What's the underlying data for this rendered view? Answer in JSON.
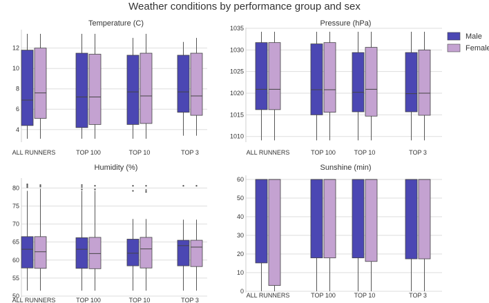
{
  "chart_data": {
    "type": "box",
    "title": "Weather conditions by performance group and sex",
    "categories": [
      "ALL RUNNERS",
      "TOP 100",
      "TOP 10",
      "TOP 3"
    ],
    "legend": {
      "position": "top-right",
      "entries": [
        {
          "name": "Male",
          "color": "#4b47b3"
        },
        {
          "name": "Female",
          "color": "#c4a2d1"
        }
      ]
    },
    "panels": [
      {
        "id": "temperature",
        "title": "Temperature (C)",
        "ylim": [
          2.9,
          13.4
        ],
        "yticks": [
          4,
          6,
          8,
          10,
          12
        ],
        "series": [
          {
            "name": "Male",
            "boxes": [
              {
                "whislo": 3.1,
                "q1": 4.4,
                "med": 6.9,
                "q3": 11.8,
                "whishi": 13.4
              },
              {
                "whislo": 3.1,
                "q1": 4.2,
                "med": 7.2,
                "q3": 11.5,
                "whishi": 13.4
              },
              {
                "whislo": 3.1,
                "q1": 4.5,
                "med": 7.7,
                "q3": 11.3,
                "whishi": 13.0
              },
              {
                "whislo": 3.4,
                "q1": 5.7,
                "med": 7.7,
                "q3": 11.3,
                "whishi": 12.6
              }
            ]
          },
          {
            "name": "Female",
            "boxes": [
              {
                "whislo": 3.1,
                "q1": 5.1,
                "med": 7.6,
                "q3": 12.0,
                "whishi": 13.4
              },
              {
                "whislo": 3.1,
                "q1": 4.5,
                "med": 7.2,
                "q3": 11.4,
                "whishi": 13.4
              },
              {
                "whislo": 3.1,
                "q1": 4.6,
                "med": 7.3,
                "q3": 11.5,
                "whishi": 13.4
              },
              {
                "whislo": 3.4,
                "q1": 5.4,
                "med": 7.3,
                "q3": 11.5,
                "whishi": 13.0
              }
            ]
          }
        ]
      },
      {
        "id": "pressure",
        "title": "Pressure (hPa)",
        "ylim": [
          1009,
          1034.2
        ],
        "yticks": [
          1010,
          1015,
          1020,
          1025,
          1030,
          1035
        ],
        "series": [
          {
            "name": "Male",
            "boxes": [
              {
                "whislo": 1009.1,
                "q1": 1016.2,
                "med": 1020.9,
                "q3": 1031.7,
                "whishi": 1034.2
              },
              {
                "whislo": 1009.1,
                "q1": 1015.0,
                "med": 1020.8,
                "q3": 1031.4,
                "whishi": 1034.2
              },
              {
                "whislo": 1009.1,
                "q1": 1015.7,
                "med": 1020.2,
                "q3": 1029.4,
                "whishi": 1034.2
              },
              {
                "whislo": 1009.1,
                "q1": 1015.7,
                "med": 1019.9,
                "q3": 1029.4,
                "whishi": 1034.2
              }
            ]
          },
          {
            "name": "Female",
            "boxes": [
              {
                "whislo": 1009.1,
                "q1": 1016.2,
                "med": 1020.9,
                "q3": 1031.7,
                "whishi": 1034.2
              },
              {
                "whislo": 1009.1,
                "q1": 1015.6,
                "med": 1020.8,
                "q3": 1031.7,
                "whishi": 1034.2
              },
              {
                "whislo": 1009.1,
                "q1": 1014.7,
                "med": 1020.9,
                "q3": 1030.6,
                "whishi": 1034.2
              },
              {
                "whislo": 1009.1,
                "q1": 1014.9,
                "med": 1020.0,
                "q3": 1030.0,
                "whishi": 1034.2
              }
            ]
          }
        ]
      },
      {
        "id": "humidity",
        "title": "Humidity (%)",
        "ylim": [
          50,
          81.6
        ],
        "yticks": [
          50,
          55,
          60,
          65,
          70,
          75,
          80
        ],
        "series": [
          {
            "name": "Male",
            "boxes": [
              {
                "whislo": 51.5,
                "q1": 57.8,
                "med": 63.0,
                "q3": 66.5,
                "whishi": 79.2,
                "fliers": [
                  80.2,
                  80.6,
                  81.0
                ]
              },
              {
                "whislo": 51.5,
                "q1": 57.7,
                "med": 63.0,
                "q3": 66.2,
                "whishi": 79.2,
                "fliers": [
                  79.6,
                  80.3,
                  80.8
                ]
              },
              {
                "whislo": 51.5,
                "q1": 58.4,
                "med": 61.9,
                "q3": 65.8,
                "whishi": 71.4,
                "fliers": [
                  79.2,
                  80.6
                ]
              },
              {
                "whislo": 51.5,
                "q1": 58.4,
                "med": 64.0,
                "q3": 65.5,
                "whishi": 71.2,
                "fliers": [
                  80.6
                ]
              }
            ]
          },
          {
            "name": "Female",
            "boxes": [
              {
                "whislo": 51.5,
                "q1": 57.7,
                "med": 62.3,
                "q3": 66.5,
                "whishi": 79.8,
                "fliers": [
                  80.4,
                  80.8
                ]
              },
              {
                "whislo": 51.5,
                "q1": 57.6,
                "med": 61.8,
                "q3": 66.3,
                "whishi": 79.2,
                "fliers": [
                  79.6,
                  80.6
                ]
              },
              {
                "whislo": 51.5,
                "q1": 57.8,
                "med": 63.1,
                "q3": 66.3,
                "whishi": 71.4,
                "fliers": [
                  78.9,
                  79.4,
                  80.6
                ]
              },
              {
                "whislo": 51.5,
                "q1": 58.2,
                "med": 63.6,
                "q3": 65.5,
                "whishi": 71.2,
                "fliers": [
                  80.6
                ]
              }
            ]
          }
        ]
      },
      {
        "id": "sunshine",
        "title": "Sunshine (min)",
        "ylim": [
          0,
          60
        ],
        "yticks": [
          0,
          10,
          20,
          30,
          40,
          50,
          60
        ],
        "series": [
          {
            "name": "Male",
            "boxes": [
              {
                "whislo": 0,
                "q1": 15.2,
                "med": 60,
                "q3": 60,
                "whishi": 60
              },
              {
                "whislo": 0,
                "q1": 17.9,
                "med": 60,
                "q3": 60,
                "whishi": 60
              },
              {
                "whislo": 0,
                "q1": 17.9,
                "med": 60,
                "q3": 60,
                "whishi": 60
              },
              {
                "whislo": 0,
                "q1": 17.4,
                "med": 60,
                "q3": 60,
                "whishi": 60
              }
            ]
          },
          {
            "name": "Female",
            "boxes": [
              {
                "whislo": 0,
                "q1": 3.1,
                "med": 60,
                "q3": 60,
                "whishi": 60
              },
              {
                "whislo": 0,
                "q1": 17.9,
                "med": 60,
                "q3": 60,
                "whishi": 60
              },
              {
                "whislo": 0,
                "q1": 16.0,
                "med": 60,
                "q3": 60,
                "whishi": 60
              },
              {
                "whislo": 0,
                "q1": 17.4,
                "med": 60,
                "q3": 60,
                "whishi": 60
              }
            ]
          }
        ]
      }
    ]
  }
}
